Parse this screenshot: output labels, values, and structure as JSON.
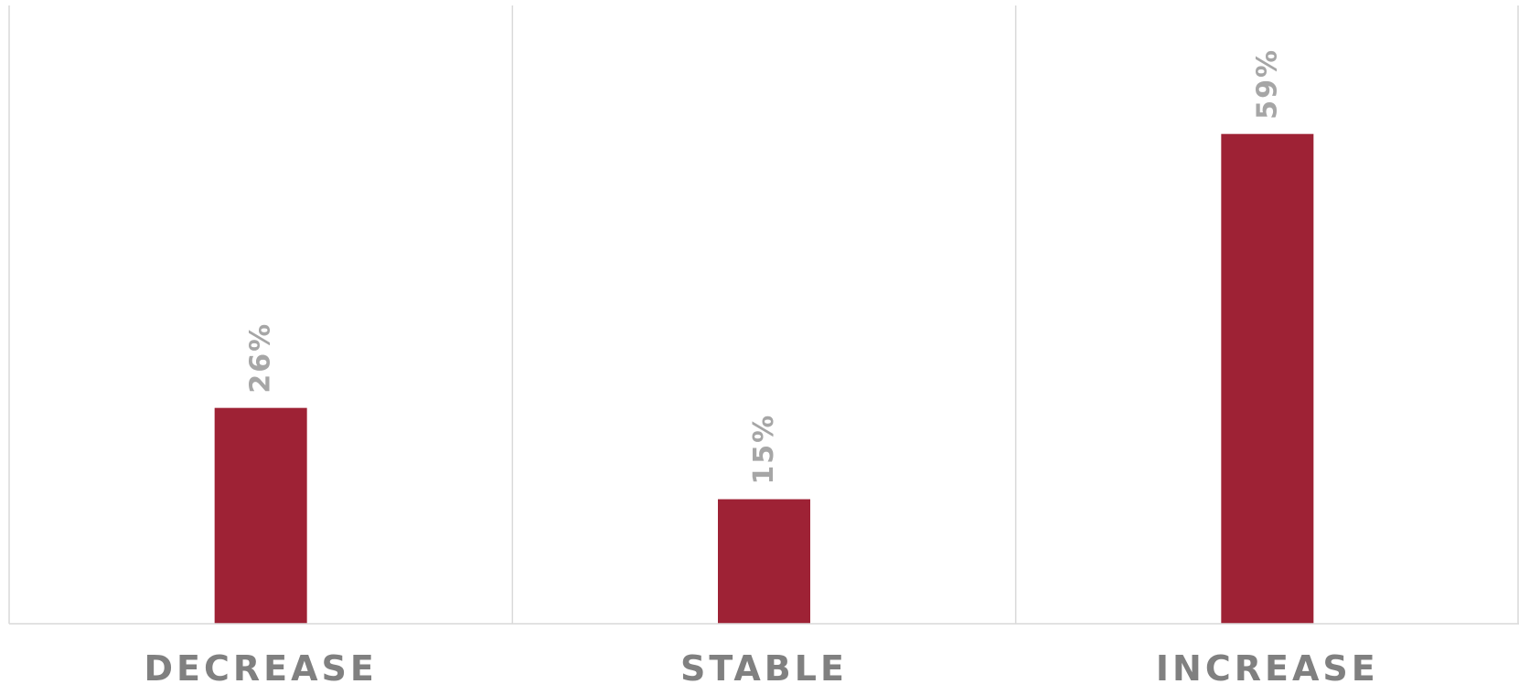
{
  "chart_data": {
    "type": "bar",
    "categories": [
      "DECREASE",
      "STABLE",
      "INCREASE"
    ],
    "values": [
      26,
      15,
      59
    ],
    "data_labels": [
      "26%",
      "15%",
      "59%"
    ],
    "unit": "%",
    "title": "",
    "xlabel": "",
    "ylabel": "",
    "ylim": [
      0,
      70
    ],
    "grid": "vertical category separators",
    "legend": "none",
    "bar_color": "#9e2235",
    "label_color": "#a6a6a6",
    "category_color": "#808080"
  }
}
